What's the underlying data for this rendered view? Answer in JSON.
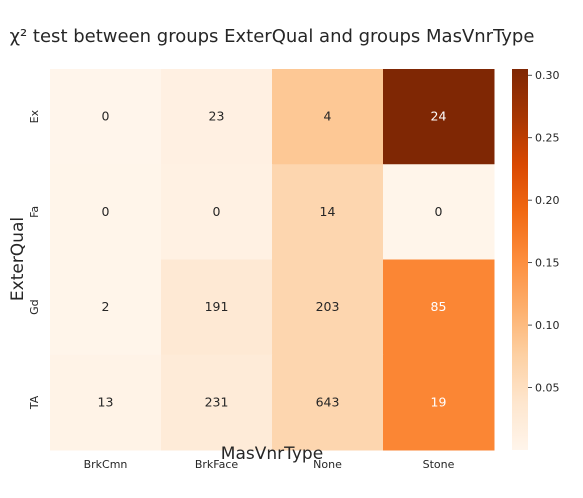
{
  "chart_data": {
    "type": "heatmap",
    "title": "χ² test between groups ExterQual and groups MasVnrType",
    "xlabel": "MasVnrType",
    "ylabel": "ExterQual",
    "x_categories": [
      "BrkCmn",
      "BrkFace",
      "None",
      "Stone"
    ],
    "y_categories": [
      "Ex",
      "Fa",
      "Gd",
      "TA"
    ],
    "counts": [
      [
        0,
        23,
        4,
        24
      ],
      [
        0,
        0,
        14,
        0
      ],
      [
        2,
        191,
        203,
        85
      ],
      [
        13,
        231,
        643,
        19
      ]
    ],
    "color_values": [
      [
        0.0,
        0.012,
        0.085,
        0.305
      ],
      [
        0.001,
        0.01,
        0.065,
        0.001
      ],
      [
        0.001,
        0.03,
        0.065,
        0.16
      ],
      [
        0.005,
        0.025,
        0.065,
        0.16
      ]
    ],
    "colormap": "Oranges",
    "colormap_stops": [
      "#fff5eb",
      "#fee6ce",
      "#fdd0a2",
      "#fdae6b",
      "#fd8d3c",
      "#f16913",
      "#d94801",
      "#a63603",
      "#7f2704"
    ],
    "colorbar": {
      "range": [
        0.0,
        0.305
      ],
      "ticks": [
        "0.05",
        "0.10",
        "0.15",
        "0.20",
        "0.25",
        "0.30"
      ]
    },
    "grid": false,
    "legend": "colorbar-right"
  }
}
